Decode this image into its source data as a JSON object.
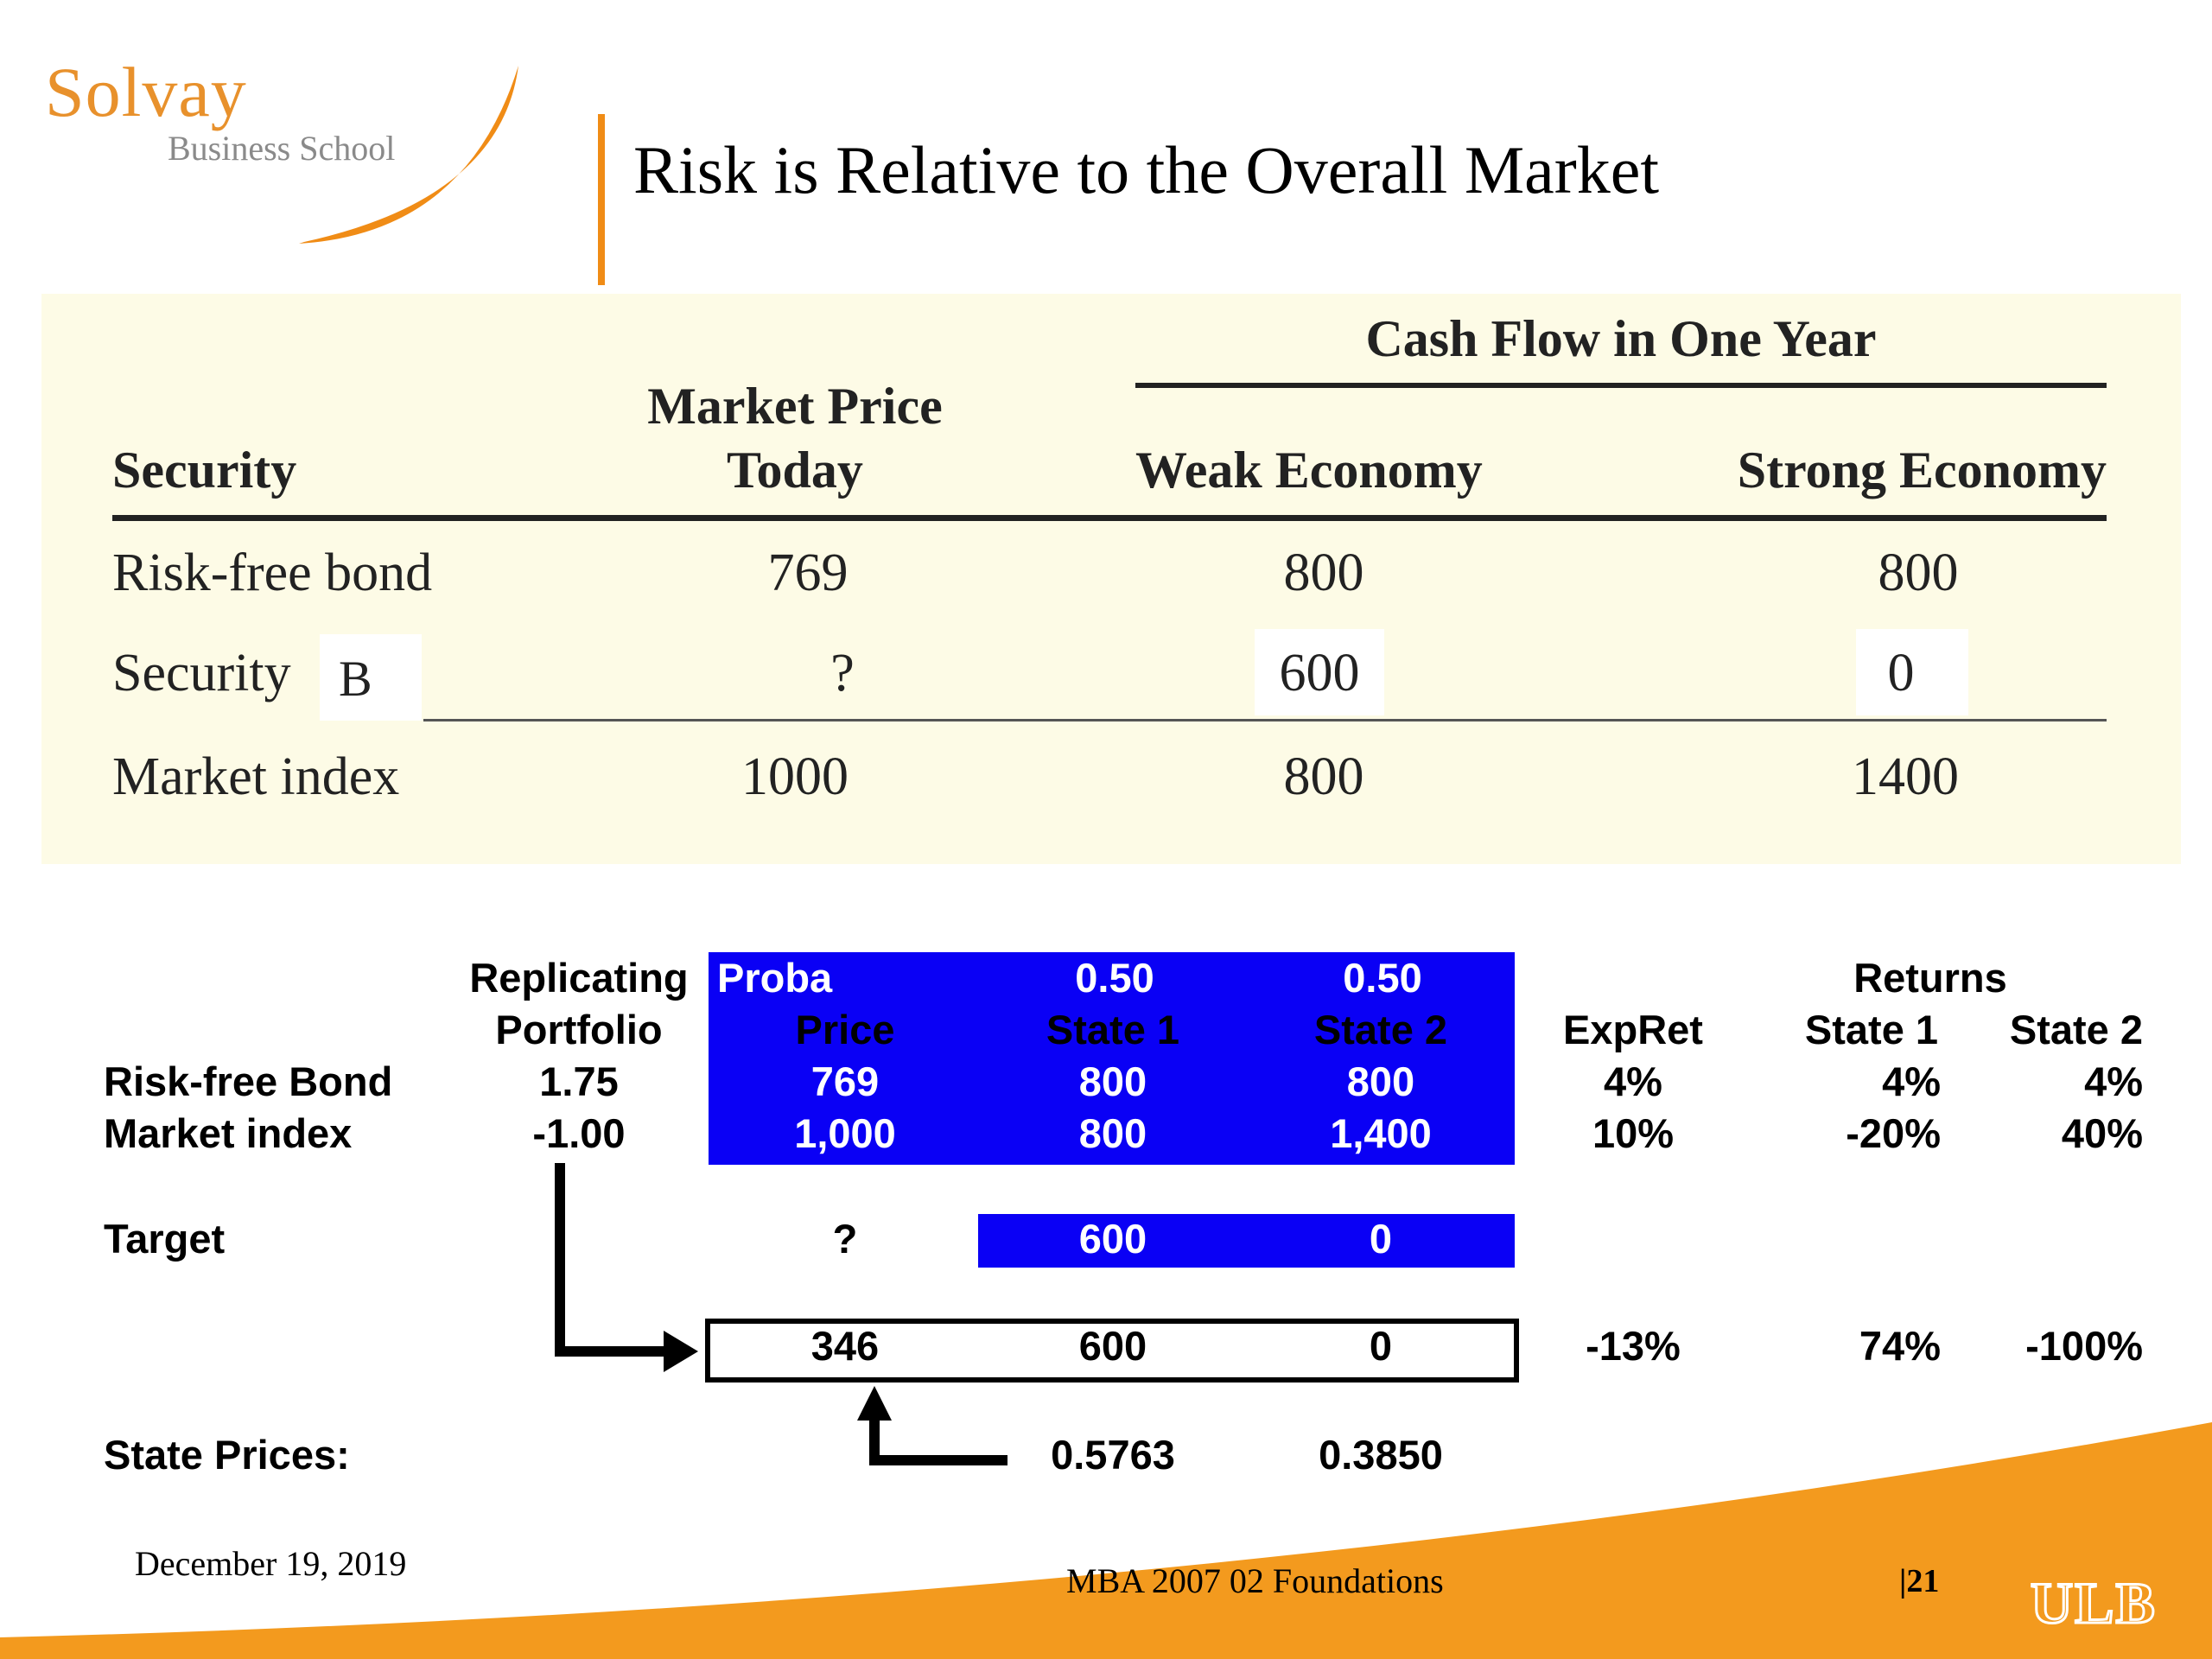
{
  "logo": {
    "brand": "Solvay",
    "subtitle": "Business School"
  },
  "slide": {
    "title": "Risk is Relative to the Overall Market"
  },
  "cash_table": {
    "group_header": "Cash Flow in One Year",
    "headers": {
      "security": "Security",
      "price_line1": "Market Price",
      "price_line2": "Today",
      "weak": "Weak Economy",
      "strong": "Strong Economy"
    },
    "rows": [
      {
        "security": "Risk-free bond",
        "price": "769",
        "weak": "800",
        "strong": "800"
      },
      {
        "security": "Security ",
        "overlay": "B",
        "price": "?",
        "weak": "600",
        "strong": "0"
      },
      {
        "security": "Market index",
        "price": "1000",
        "weak": "800",
        "strong": "1400"
      }
    ]
  },
  "sheet": {
    "hdr_replicating": "Replicating",
    "hdr_portfolio": "Portfolio",
    "proba_label": "Proba",
    "proba_s1": "0.50",
    "proba_s2": "0.50",
    "hdr_price": "Price",
    "hdr_state1": "State 1",
    "hdr_state2": "State 2",
    "hdr_expret": "ExpRet",
    "hdr_returns": "Returns",
    "hdr_ret_state1": "State 1",
    "hdr_ret_state2": "State 2",
    "rows": [
      {
        "label": "Risk-free Bond",
        "weight": "1.75",
        "price": "769",
        "s1": "800",
        "s2": "800",
        "expret": "4%",
        "r1": "4%",
        "r2": "4%"
      },
      {
        "label": "Market index",
        "weight": "-1.00",
        "price": "1,000",
        "s1": "800",
        "s2": "1,400",
        "expret": "10%",
        "r1": "-20%",
        "r2": "40%"
      }
    ],
    "target": {
      "label": "Target",
      "price": "?",
      "s1": "600",
      "s2": "0"
    },
    "result": {
      "price": "346",
      "s1": "600",
      "s2": "0",
      "expret": "-13%",
      "r1": "74%",
      "r2": "-100%"
    },
    "state_prices": {
      "label": "State Prices:",
      "s1": "0.5763",
      "s2": "0.3850"
    }
  },
  "footer": {
    "date": "December 19, 2019",
    "course": "MBA 2007 02 Foundations",
    "page": "|21",
    "ulb": "ULB"
  },
  "colors": {
    "orange": "#f08c16",
    "blue": "#0a00f5",
    "panel": "#fdfbe6"
  }
}
